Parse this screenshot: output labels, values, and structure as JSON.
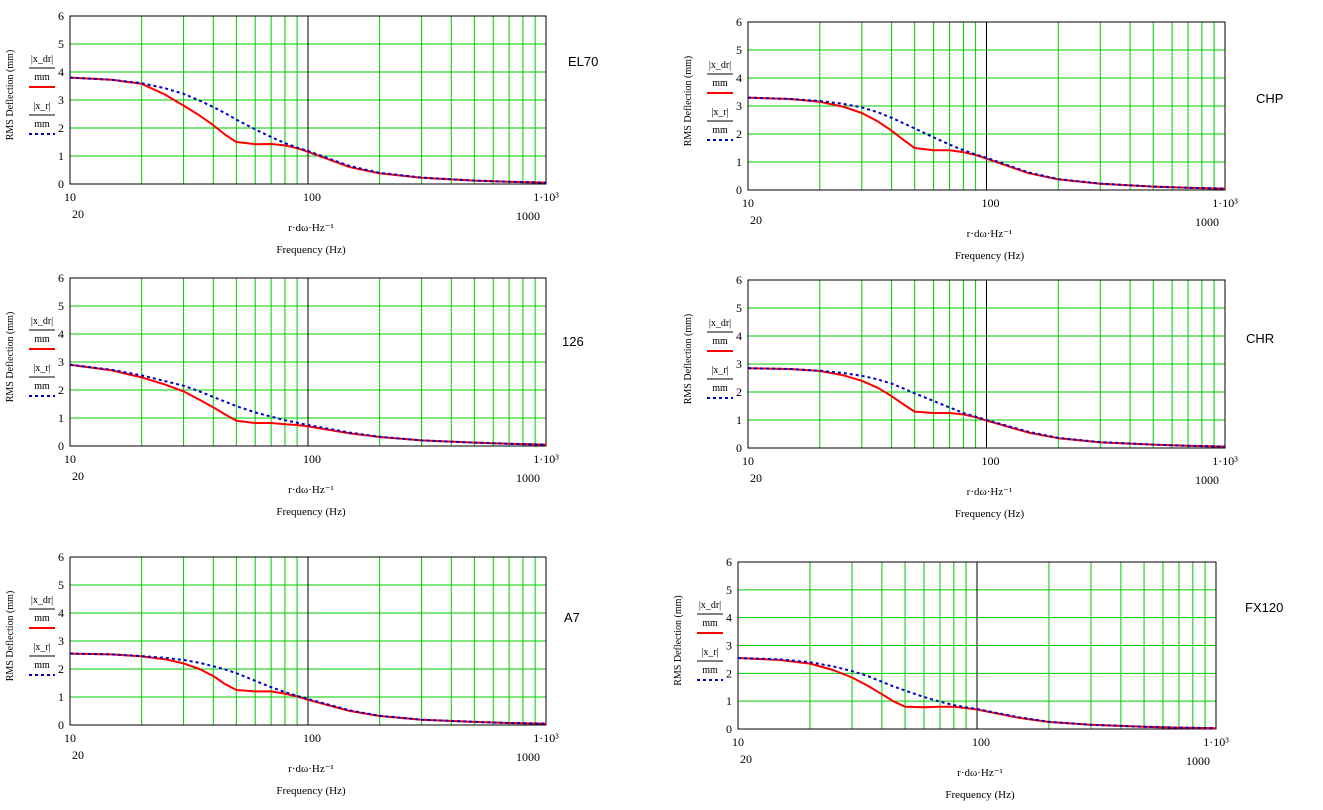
{
  "colors": {
    "grid": "#00cc00",
    "major_grid": "#000000",
    "series1": "#ff0000",
    "series2": "#0000cc",
    "frame": "#000000"
  },
  "chart_data": [
    {
      "type": "line",
      "title": "EL70",
      "ylabel": "RMS Deflection (mm)",
      "xlabel": "Frequency (Hz)",
      "x_expression": "r·dω·Hz⁻¹",
      "legend": [
        {
          "expression": "|x_dr|",
          "unit": "mm"
        },
        {
          "expression": "|x_r|",
          "unit": "mm"
        }
      ],
      "x_scale": "log",
      "xlim": [
        10,
        1000
      ],
      "ylim": [
        0,
        6
      ],
      "x_tick_labels": [
        "10",
        "100",
        "1·10³"
      ],
      "y_tick_labels": [
        "0",
        "1",
        "2",
        "3",
        "4",
        "5",
        "6"
      ],
      "x_extra_labels": [
        "20",
        "1000"
      ],
      "series": [
        {
          "x": [
            10,
            15,
            20,
            25,
            30,
            35,
            40,
            45,
            50,
            60,
            70,
            80,
            90,
            100,
            150,
            200,
            300,
            500,
            700,
            1000
          ],
          "values": [
            3.8,
            3.72,
            3.58,
            3.2,
            2.8,
            2.45,
            2.1,
            1.75,
            1.5,
            1.42,
            1.43,
            1.38,
            1.28,
            1.15,
            0.6,
            0.38,
            0.22,
            0.12,
            0.08,
            0.05
          ]
        },
        {
          "x": [
            10,
            15,
            20,
            25,
            30,
            35,
            40,
            45,
            50,
            60,
            70,
            80,
            90,
            100,
            150,
            200,
            300,
            500,
            700,
            1000
          ],
          "values": [
            3.8,
            3.72,
            3.6,
            3.42,
            3.22,
            2.98,
            2.75,
            2.52,
            2.3,
            1.95,
            1.68,
            1.46,
            1.3,
            1.18,
            0.64,
            0.4,
            0.23,
            0.12,
            0.08,
            0.05
          ]
        }
      ]
    },
    {
      "type": "line",
      "title": "CHP",
      "ylabel": "RMS Deflection (mm)",
      "xlabel": "Frequency (Hz)",
      "x_expression": "r·dω·Hz⁻¹",
      "legend": [
        {
          "expression": "|x_dr|",
          "unit": "mm"
        },
        {
          "expression": "|x_r|",
          "unit": "mm"
        }
      ],
      "x_scale": "log",
      "xlim": [
        10,
        1000
      ],
      "ylim": [
        0,
        6
      ],
      "x_tick_labels": [
        "10",
        "100",
        "1·10³"
      ],
      "y_tick_labels": [
        "0",
        "1",
        "2",
        "3",
        "4",
        "5",
        "6"
      ],
      "x_extra_labels": [
        "20",
        "1000"
      ],
      "series": [
        {
          "x": [
            10,
            15,
            20,
            25,
            30,
            35,
            40,
            45,
            50,
            60,
            70,
            80,
            90,
            100,
            150,
            200,
            300,
            500,
            700,
            1000
          ],
          "values": [
            3.3,
            3.25,
            3.15,
            2.98,
            2.75,
            2.45,
            2.12,
            1.78,
            1.5,
            1.42,
            1.42,
            1.35,
            1.25,
            1.12,
            0.6,
            0.38,
            0.22,
            0.12,
            0.08,
            0.05
          ]
        },
        {
          "x": [
            10,
            15,
            20,
            25,
            30,
            35,
            40,
            45,
            50,
            60,
            70,
            80,
            90,
            100,
            150,
            200,
            300,
            500,
            700,
            1000
          ],
          "values": [
            3.3,
            3.25,
            3.18,
            3.08,
            2.95,
            2.78,
            2.58,
            2.38,
            2.2,
            1.88,
            1.62,
            1.42,
            1.27,
            1.15,
            0.63,
            0.39,
            0.23,
            0.12,
            0.08,
            0.05
          ]
        }
      ]
    },
    {
      "type": "line",
      "title": "126",
      "ylabel": "RMS Deflection (mm)",
      "xlabel": "Frequency (Hz)",
      "x_expression": "r·dω·Hz⁻¹",
      "legend": [
        {
          "expression": "|x_dr|",
          "unit": "mm"
        },
        {
          "expression": "|x_r|",
          "unit": "mm"
        }
      ],
      "x_scale": "log",
      "xlim": [
        10,
        1000
      ],
      "ylim": [
        0,
        6
      ],
      "x_tick_labels": [
        "10",
        "100",
        "1·10³"
      ],
      "y_tick_labels": [
        "0",
        "1",
        "2",
        "3",
        "4",
        "5",
        "6"
      ],
      "x_extra_labels": [
        "20",
        "1000"
      ],
      "series": [
        {
          "x": [
            10,
            15,
            20,
            25,
            30,
            35,
            40,
            45,
            50,
            60,
            70,
            80,
            90,
            100,
            150,
            200,
            300,
            500,
            700,
            1000
          ],
          "values": [
            2.9,
            2.7,
            2.45,
            2.2,
            1.95,
            1.65,
            1.38,
            1.12,
            0.9,
            0.82,
            0.82,
            0.78,
            0.75,
            0.7,
            0.45,
            0.32,
            0.2,
            0.12,
            0.08,
            0.05
          ]
        },
        {
          "x": [
            10,
            15,
            20,
            25,
            30,
            35,
            40,
            45,
            50,
            60,
            70,
            80,
            90,
            100,
            150,
            200,
            300,
            500,
            700,
            1000
          ],
          "values": [
            2.9,
            2.72,
            2.52,
            2.32,
            2.15,
            1.95,
            1.75,
            1.58,
            1.42,
            1.2,
            1.05,
            0.92,
            0.83,
            0.75,
            0.48,
            0.33,
            0.2,
            0.12,
            0.08,
            0.05
          ]
        }
      ]
    },
    {
      "type": "line",
      "title": "CHR",
      "ylabel": "RMS Deflection (mm)",
      "xlabel": "Frequency (Hz)",
      "x_expression": "r·dω·Hz⁻¹",
      "legend": [
        {
          "expression": "|x_dr|",
          "unit": "mm"
        },
        {
          "expression": "|x_r|",
          "unit": "mm"
        }
      ],
      "x_scale": "log",
      "xlim": [
        10,
        1000
      ],
      "ylim": [
        0,
        6
      ],
      "x_tick_labels": [
        "10",
        "100",
        "1·10³"
      ],
      "y_tick_labels": [
        "0",
        "1",
        "2",
        "3",
        "4",
        "5",
        "6"
      ],
      "x_extra_labels": [
        "20",
        "1000"
      ],
      "series": [
        {
          "x": [
            10,
            15,
            20,
            25,
            30,
            35,
            40,
            45,
            50,
            60,
            70,
            80,
            90,
            100,
            150,
            200,
            300,
            500,
            700,
            1000
          ],
          "values": [
            2.85,
            2.82,
            2.75,
            2.6,
            2.4,
            2.15,
            1.85,
            1.55,
            1.3,
            1.25,
            1.25,
            1.2,
            1.1,
            0.98,
            0.55,
            0.35,
            0.2,
            0.12,
            0.08,
            0.05
          ]
        },
        {
          "x": [
            10,
            15,
            20,
            25,
            30,
            35,
            40,
            45,
            50,
            60,
            70,
            80,
            90,
            100,
            150,
            200,
            300,
            500,
            700,
            1000
          ],
          "values": [
            2.85,
            2.82,
            2.76,
            2.68,
            2.58,
            2.45,
            2.3,
            2.12,
            1.95,
            1.68,
            1.45,
            1.25,
            1.12,
            1.0,
            0.58,
            0.36,
            0.21,
            0.12,
            0.08,
            0.05
          ]
        }
      ]
    },
    {
      "type": "line",
      "title": "A7",
      "ylabel": "RMS Deflection (mm)",
      "xlabel": "Frequency (Hz)",
      "x_expression": "r·dω·Hz⁻¹",
      "legend": [
        {
          "expression": "|x_dr|",
          "unit": "mm"
        },
        {
          "expression": "|x_r|",
          "unit": "mm"
        }
      ],
      "x_scale": "log",
      "xlim": [
        10,
        1000
      ],
      "ylim": [
        0,
        6
      ],
      "x_tick_labels": [
        "10",
        "100",
        "1·10³"
      ],
      "y_tick_labels": [
        "0",
        "1",
        "2",
        "3",
        "4",
        "5",
        "6"
      ],
      "x_extra_labels": [
        "20",
        "1000"
      ],
      "series": [
        {
          "x": [
            10,
            15,
            20,
            25,
            30,
            35,
            40,
            45,
            50,
            60,
            70,
            80,
            90,
            100,
            150,
            200,
            300,
            500,
            700,
            1000
          ],
          "values": [
            2.55,
            2.52,
            2.45,
            2.35,
            2.2,
            2.0,
            1.75,
            1.45,
            1.25,
            1.2,
            1.2,
            1.12,
            1.02,
            0.9,
            0.5,
            0.32,
            0.19,
            0.11,
            0.07,
            0.05
          ]
        },
        {
          "x": [
            10,
            15,
            20,
            25,
            30,
            35,
            40,
            45,
            50,
            60,
            70,
            80,
            90,
            100,
            150,
            200,
            300,
            500,
            700,
            1000
          ],
          "values": [
            2.55,
            2.52,
            2.46,
            2.4,
            2.32,
            2.22,
            2.1,
            1.98,
            1.85,
            1.58,
            1.35,
            1.18,
            1.04,
            0.93,
            0.52,
            0.33,
            0.19,
            0.11,
            0.07,
            0.05
          ]
        }
      ]
    },
    {
      "type": "line",
      "title": "FX120",
      "ylabel": "RMS Deflection (mm)",
      "xlabel": "Frequency (Hz)",
      "x_expression": "r·dω·Hz⁻¹",
      "legend": [
        {
          "expression": "|x_dr|",
          "unit": "mm"
        },
        {
          "expression": "|x_r|",
          "unit": "mm"
        }
      ],
      "x_scale": "log",
      "xlim": [
        10,
        1000
      ],
      "ylim": [
        0,
        6
      ],
      "x_tick_labels": [
        "10",
        "100",
        "1·10³"
      ],
      "y_tick_labels": [
        "0",
        "1",
        "2",
        "3",
        "4",
        "5",
        "6"
      ],
      "x_extra_labels": [
        "20",
        "1000"
      ],
      "series": [
        {
          "x": [
            10,
            15,
            20,
            25,
            30,
            35,
            40,
            45,
            50,
            60,
            70,
            80,
            90,
            100,
            150,
            200,
            300,
            500,
            700,
            1000
          ],
          "values": [
            2.55,
            2.48,
            2.35,
            2.12,
            1.85,
            1.55,
            1.25,
            0.98,
            0.8,
            0.78,
            0.8,
            0.8,
            0.75,
            0.7,
            0.4,
            0.25,
            0.15,
            0.08,
            0.05,
            0.03
          ]
        },
        {
          "x": [
            10,
            15,
            20,
            25,
            30,
            35,
            40,
            45,
            50,
            60,
            70,
            80,
            90,
            100,
            150,
            200,
            300,
            500,
            700,
            1000
          ],
          "values": [
            2.55,
            2.5,
            2.4,
            2.25,
            2.08,
            1.9,
            1.7,
            1.52,
            1.38,
            1.15,
            0.98,
            0.86,
            0.78,
            0.72,
            0.42,
            0.26,
            0.15,
            0.08,
            0.05,
            0.03
          ]
        }
      ]
    }
  ]
}
